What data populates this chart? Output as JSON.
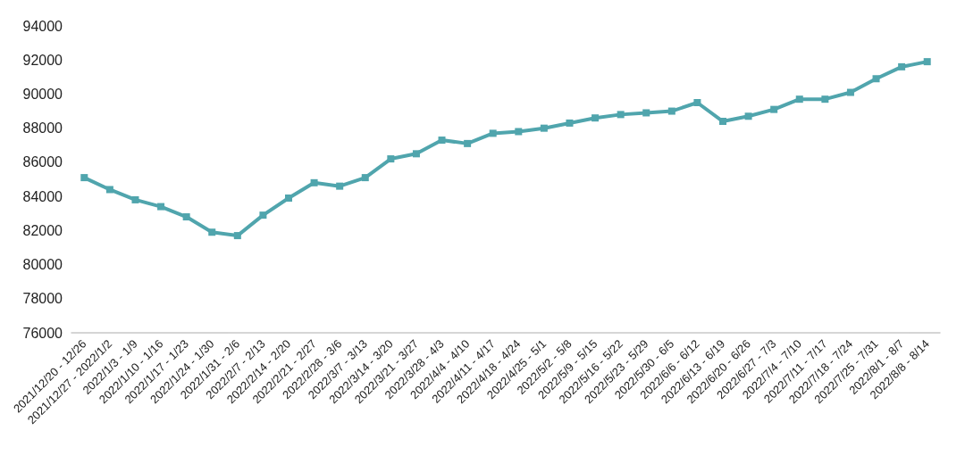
{
  "chart_data": {
    "type": "line",
    "categories": [
      "2021/12/20 - 12/26",
      "2021/12/27 - 2022/1/2",
      "2022/1/3 - 1/9",
      "2022/1/10 - 1/16",
      "2022/1/17 - 1/23",
      "2022/1/24 - 1/30",
      "2022/1/31 - 2/6",
      "2022/2/7 - 2/13",
      "2022/2/14 - 2/20",
      "2022/2/21 - 2/27",
      "2022/2/28 - 3/6",
      "2022/3/7 - 3/13",
      "2022/3/14 - 3/20",
      "2022/3/21 - 3/27",
      "2022/3/28 - 4/3",
      "2022/4/4 - 4/10",
      "2022/4/11 - 4/17",
      "2022/4/18 - 4/24",
      "2022/4/25 - 5/1",
      "2022/5/2 - 5/8",
      "2022/5/9 - 5/15",
      "2022/5/16 - 5/22",
      "2022/5/23 - 5/29",
      "2022/5/30 - 6/5",
      "2022/6/6 - 6/12",
      "2022/6/13 - 6/19",
      "2022/6/20 - 6/26",
      "2022/6/27 - 7/3",
      "2022/7/4 - 7/10",
      "2022/7/11 - 7/17",
      "2022/7/18 - 7/24",
      "2022/7/25 - 7/31",
      "2022/8/1 - 8/7",
      "2022/8/8 - 8/14"
    ],
    "series": [
      {
        "color": "#50a5ad",
        "values": [
          85100,
          84400,
          83800,
          83400,
          82800,
          81900,
          81700,
          82900,
          83900,
          84800,
          84600,
          85100,
          86200,
          86500,
          87300,
          87100,
          87700,
          87800,
          88000,
          88300,
          88600,
          88800,
          88900,
          89000,
          89500,
          88400,
          88700,
          89100,
          89700,
          89700,
          90100,
          90900,
          91600,
          91900
        ]
      }
    ],
    "ylim": [
      76000,
      94000
    ],
    "yticks": [
      76000,
      78000,
      80000,
      82000,
      84000,
      86000,
      88000,
      90000,
      92000,
      94000
    ],
    "grid": false,
    "marker": "square",
    "line_style": "solid"
  }
}
